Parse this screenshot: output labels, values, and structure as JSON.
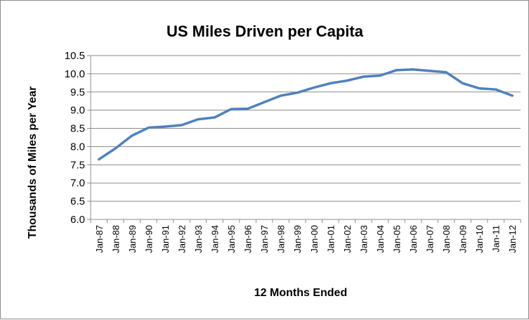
{
  "chart_data": {
    "type": "line",
    "title": "US Miles Driven per Capita",
    "xlabel": "12 Months Ended",
    "ylabel": "Thousands of Miles per Year",
    "ylim": [
      6.0,
      10.5
    ],
    "yticks": [
      "6.0",
      "6.5",
      "7.0",
      "7.5",
      "8.0",
      "8.5",
      "9.0",
      "9.5",
      "10.0",
      "10.5"
    ],
    "grid": true,
    "legend": "none",
    "line_color": "#4f81bd",
    "categories": [
      "Jan-87",
      "Jan-88",
      "Jan-89",
      "Jan-90",
      "Jan-91",
      "Jan-92",
      "Jan-93",
      "Jan-94",
      "Jan-95",
      "Jan-96",
      "Jan-97",
      "Jan-98",
      "Jan-99",
      "Jan-00",
      "Jan-01",
      "Jan-02",
      "Jan-03",
      "Jan-04",
      "Jan-05",
      "Jan-06",
      "Jan-07",
      "Jan-08",
      "Jan-09",
      "Jan-10",
      "Jan-11",
      "Jan-12"
    ],
    "values": [
      7.65,
      7.95,
      8.3,
      8.52,
      8.55,
      8.59,
      8.75,
      8.8,
      9.03,
      9.04,
      9.22,
      9.4,
      9.48,
      9.62,
      9.74,
      9.81,
      9.92,
      9.95,
      10.1,
      10.12,
      10.08,
      10.04,
      9.74,
      9.6,
      9.57,
      9.4
    ]
  }
}
